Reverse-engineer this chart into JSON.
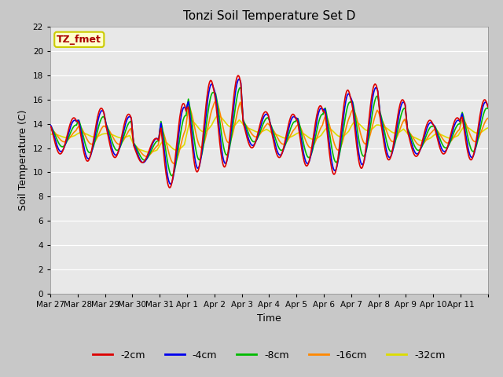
{
  "title": "Tonzi Soil Temperature Set D",
  "xlabel": "Time",
  "ylabel": "Soil Temperature (C)",
  "annotation": "TZ_fmet",
  "ylim": [
    0,
    22
  ],
  "yticks": [
    0,
    2,
    4,
    6,
    8,
    10,
    12,
    14,
    16,
    18,
    20,
    22
  ],
  "fig_bg": "#c8c8c8",
  "ax_bg": "#e8e8e8",
  "series": {
    "-2cm": {
      "color": "#dd0000",
      "linewidth": 1.2
    },
    "-4cm": {
      "color": "#0000ee",
      "linewidth": 1.2
    },
    "-8cm": {
      "color": "#00bb00",
      "linewidth": 1.2
    },
    "-16cm": {
      "color": "#ff8800",
      "linewidth": 1.2
    },
    "-32cm": {
      "color": "#dddd00",
      "linewidth": 1.2
    }
  },
  "x_tick_labels": [
    "Mar 27",
    "Mar 28",
    "Mar 29",
    "Mar 30",
    "Mar 31",
    "Apr 1",
    "Apr 2",
    "Apr 3",
    "Apr 4",
    "Apr 5",
    "Apr 6",
    "Apr 7",
    "Apr 8",
    "Apr 9",
    "Apr 10",
    "Apr 11"
  ],
  "annotation_box_color": "#ffffcc",
  "annotation_text_color": "#aa0000",
  "annotation_border_color": "#cccc00",
  "day_bases": [
    13.0,
    13.1,
    13.0,
    11.8,
    12.2,
    13.8,
    14.2,
    13.5,
    13.0,
    13.0,
    13.3,
    13.8,
    13.5,
    12.8,
    13.0,
    13.5
  ],
  "day_amps_2cm": [
    1.5,
    2.2,
    1.8,
    1.0,
    3.5,
    3.8,
    3.8,
    1.5,
    1.8,
    2.5,
    3.5,
    3.5,
    2.5,
    1.5,
    1.5,
    2.5
  ],
  "day_amps_4cm": [
    1.3,
    2.0,
    1.6,
    1.0,
    3.2,
    3.5,
    3.5,
    1.3,
    1.6,
    2.3,
    3.2,
    3.2,
    2.3,
    1.3,
    1.3,
    2.3
  ],
  "day_amps_8cm": [
    0.9,
    1.5,
    1.2,
    0.8,
    2.5,
    2.8,
    2.8,
    1.0,
    1.2,
    1.8,
    2.5,
    2.5,
    1.8,
    1.0,
    1.0,
    1.8
  ],
  "day_amps_16cm": [
    0.5,
    0.8,
    0.7,
    0.5,
    1.5,
    1.8,
    1.8,
    0.6,
    0.7,
    1.0,
    1.5,
    1.5,
    1.0,
    0.6,
    0.6,
    1.0
  ],
  "day_amps_32cm": [
    0.15,
    0.2,
    0.18,
    0.15,
    0.4,
    0.5,
    0.5,
    0.2,
    0.2,
    0.3,
    0.4,
    0.4,
    0.3,
    0.2,
    0.2,
    0.3
  ],
  "phase_2cm": 0.6,
  "phase_4cm": 0.63,
  "phase_8cm": 0.68,
  "phase_16cm": 0.75,
  "phase_32cm": 0.85
}
